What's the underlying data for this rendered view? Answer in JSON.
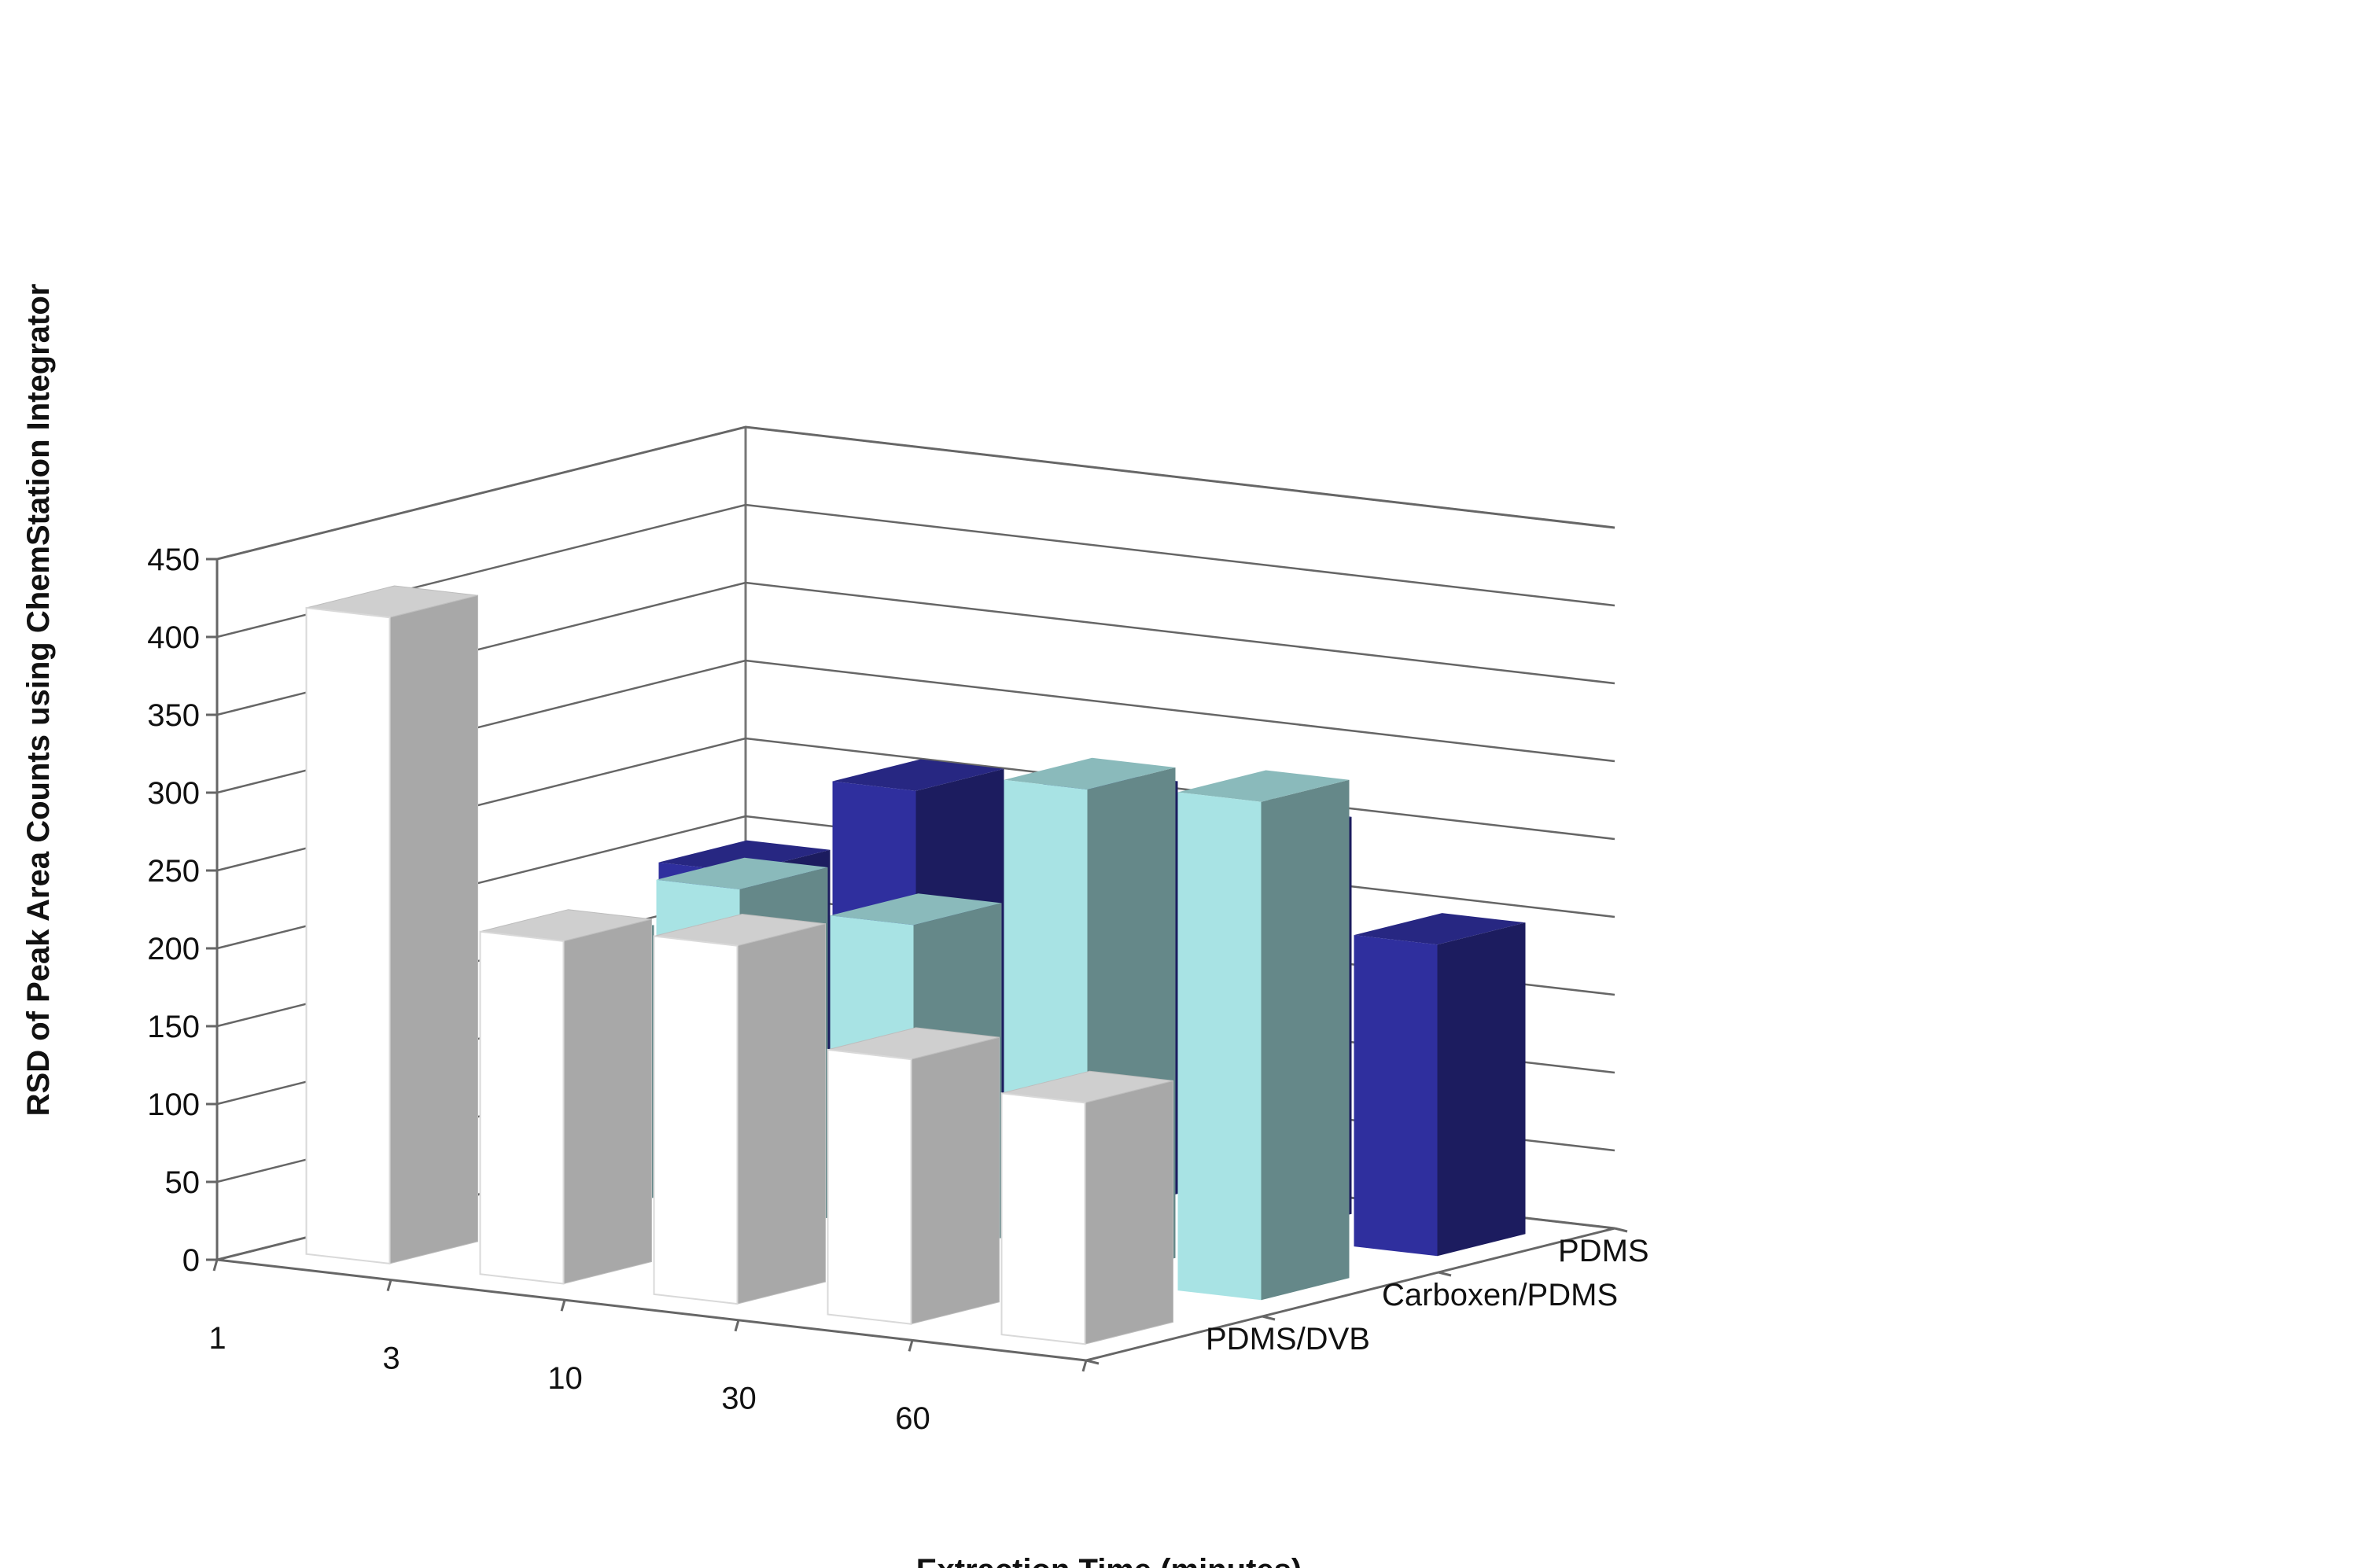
{
  "chart_data": {
    "type": "bar",
    "subtype": "3d-column",
    "title": "",
    "xlabel": "Extraction Time (minutes)",
    "ylabel": "RSD of Peak Area Counts using ChemStation Integrator",
    "categories": [
      "1",
      "3",
      "10",
      "30",
      "60"
    ],
    "yticks": [
      "0",
      "50",
      "100",
      "150",
      "200",
      "250",
      "300",
      "350",
      "400",
      "450"
    ],
    "ylim": [
      0,
      450
    ],
    "grid": true,
    "legend": "none (series labels on depth axis)",
    "series": [
      {
        "name": "PDMS",
        "color": "#2f2f9e",
        "values": [
          195,
          260,
          265,
          255,
          200
        ]
      },
      {
        "name": "Carboxen/PDMS",
        "color": "#a8e3e4",
        "values": [
          175,
          225,
          215,
          315,
          320
        ]
      },
      {
        "name": "PDMS/DVB",
        "color": "#ffffff",
        "values": [
          415,
          220,
          230,
          170,
          155
        ]
      }
    ]
  }
}
